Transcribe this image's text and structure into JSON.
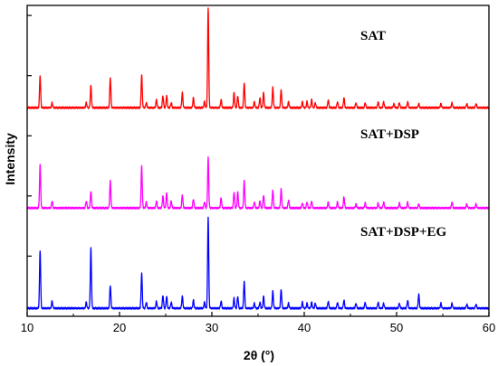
{
  "chart_data": {
    "type": "line",
    "xlabel": "2θ (°)",
    "ylabel": "Intensity",
    "xlim": [
      10,
      60
    ],
    "xticks": [
      "10",
      "20",
      "30",
      "40",
      "50",
      "60"
    ],
    "y_tick_labels_shown": false,
    "grid": false,
    "legend": "none",
    "series": [
      {
        "name": "SAT",
        "color": "#ff0000",
        "offset": 2.08,
        "peaks": [
          [
            11.4,
            0.32
          ],
          [
            12.7,
            0.05
          ],
          [
            16.4,
            0.05
          ],
          [
            16.9,
            0.22
          ],
          [
            19.0,
            0.3
          ],
          [
            22.4,
            0.33
          ],
          [
            22.9,
            0.05
          ],
          [
            24.0,
            0.08
          ],
          [
            24.7,
            0.12
          ],
          [
            25.1,
            0.12
          ],
          [
            25.6,
            0.05
          ],
          [
            26.8,
            0.15
          ],
          [
            28.0,
            0.1
          ],
          [
            29.2,
            0.06
          ],
          [
            29.6,
            1.0
          ],
          [
            31.0,
            0.08
          ],
          [
            32.4,
            0.15
          ],
          [
            32.8,
            0.12
          ],
          [
            33.5,
            0.25
          ],
          [
            34.6,
            0.06
          ],
          [
            35.2,
            0.1
          ],
          [
            35.6,
            0.15
          ],
          [
            36.6,
            0.2
          ],
          [
            37.5,
            0.18
          ],
          [
            38.3,
            0.06
          ],
          [
            39.8,
            0.06
          ],
          [
            40.3,
            0.06
          ],
          [
            40.8,
            0.08
          ],
          [
            41.2,
            0.05
          ],
          [
            42.6,
            0.08
          ],
          [
            43.6,
            0.06
          ],
          [
            44.3,
            0.1
          ],
          [
            45.6,
            0.05
          ],
          [
            46.6,
            0.05
          ],
          [
            48.0,
            0.06
          ],
          [
            48.6,
            0.06
          ],
          [
            49.7,
            0.04
          ],
          [
            50.3,
            0.05
          ],
          [
            51.2,
            0.06
          ],
          [
            52.4,
            0.04
          ],
          [
            54.8,
            0.04
          ],
          [
            56.0,
            0.05
          ],
          [
            57.6,
            0.04
          ],
          [
            58.6,
            0.04
          ]
        ]
      },
      {
        "name": "SAT+DSP",
        "color": "#ff00ff",
        "offset": 1.08,
        "peaks": [
          [
            11.4,
            0.43
          ],
          [
            12.7,
            0.07
          ],
          [
            16.4,
            0.07
          ],
          [
            16.9,
            0.17
          ],
          [
            19.0,
            0.27
          ],
          [
            22.4,
            0.42
          ],
          [
            22.9,
            0.06
          ],
          [
            24.0,
            0.07
          ],
          [
            24.7,
            0.12
          ],
          [
            25.1,
            0.15
          ],
          [
            25.6,
            0.07
          ],
          [
            26.8,
            0.13
          ],
          [
            28.0,
            0.09
          ],
          [
            29.2,
            0.06
          ],
          [
            29.6,
            0.5
          ],
          [
            31.0,
            0.1
          ],
          [
            32.4,
            0.16
          ],
          [
            32.8,
            0.16
          ],
          [
            33.5,
            0.27
          ],
          [
            34.6,
            0.06
          ],
          [
            35.2,
            0.07
          ],
          [
            35.6,
            0.13
          ],
          [
            36.6,
            0.18
          ],
          [
            37.5,
            0.19
          ],
          [
            38.3,
            0.08
          ],
          [
            39.8,
            0.05
          ],
          [
            40.3,
            0.06
          ],
          [
            40.8,
            0.07
          ],
          [
            42.6,
            0.06
          ],
          [
            43.6,
            0.06
          ],
          [
            44.3,
            0.11
          ],
          [
            45.6,
            0.04
          ],
          [
            46.6,
            0.05
          ],
          [
            48.0,
            0.05
          ],
          [
            48.6,
            0.06
          ],
          [
            50.3,
            0.05
          ],
          [
            51.2,
            0.06
          ],
          [
            52.4,
            0.04
          ],
          [
            56.0,
            0.06
          ],
          [
            57.6,
            0.04
          ],
          [
            58.6,
            0.04
          ]
        ]
      },
      {
        "name": "SAT+DSP+EG",
        "color": "#0000ff",
        "offset": 0.08,
        "peaks": [
          [
            11.4,
            0.58
          ],
          [
            12.7,
            0.07
          ],
          [
            16.4,
            0.06
          ],
          [
            16.9,
            0.6
          ],
          [
            19.0,
            0.23
          ],
          [
            22.4,
            0.35
          ],
          [
            22.9,
            0.06
          ],
          [
            24.0,
            0.07
          ],
          [
            24.7,
            0.13
          ],
          [
            25.1,
            0.12
          ],
          [
            25.6,
            0.06
          ],
          [
            26.8,
            0.12
          ],
          [
            28.0,
            0.08
          ],
          [
            29.2,
            0.06
          ],
          [
            29.6,
            0.91
          ],
          [
            31.0,
            0.07
          ],
          [
            32.4,
            0.1
          ],
          [
            32.8,
            0.12
          ],
          [
            33.5,
            0.27
          ],
          [
            34.6,
            0.05
          ],
          [
            35.2,
            0.06
          ],
          [
            35.6,
            0.12
          ],
          [
            36.6,
            0.17
          ],
          [
            37.5,
            0.19
          ],
          [
            38.3,
            0.05
          ],
          [
            39.8,
            0.06
          ],
          [
            40.3,
            0.05
          ],
          [
            40.8,
            0.06
          ],
          [
            41.2,
            0.05
          ],
          [
            42.6,
            0.07
          ],
          [
            43.6,
            0.06
          ],
          [
            44.3,
            0.08
          ],
          [
            45.6,
            0.05
          ],
          [
            46.6,
            0.06
          ],
          [
            48.0,
            0.06
          ],
          [
            48.6,
            0.05
          ],
          [
            50.3,
            0.05
          ],
          [
            51.2,
            0.08
          ],
          [
            52.4,
            0.14
          ],
          [
            54.8,
            0.05
          ],
          [
            56.0,
            0.05
          ],
          [
            57.6,
            0.04
          ],
          [
            58.6,
            0.04
          ]
        ]
      }
    ],
    "annotations": [
      "SAT",
      "SAT+DSP",
      "SAT+DSP+EG"
    ]
  }
}
